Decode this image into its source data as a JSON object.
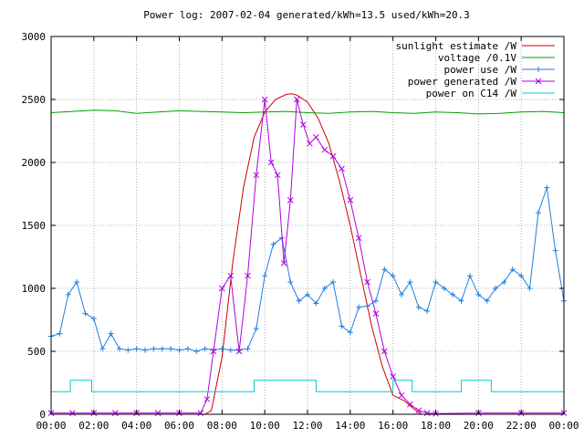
{
  "chart_data": {
    "type": "line",
    "title": "Power log: 2007-02-04 generated/kWh=13.5 used/kWh=20.3",
    "xlabel": "",
    "ylabel": "",
    "x_unit": "hours",
    "xlim": [
      0,
      24
    ],
    "ylim": [
      0,
      3000
    ],
    "xtick_values": [
      0,
      2,
      4,
      6,
      8,
      10,
      12,
      14,
      16,
      18,
      20,
      22,
      24
    ],
    "xtick_labels": [
      "00:00",
      "02:00",
      "04:00",
      "06:00",
      "08:00",
      "10:00",
      "12:00",
      "14:00",
      "16:00",
      "18:00",
      "20:00",
      "22:00",
      "00:00"
    ],
    "ytick_values": [
      0,
      500,
      1000,
      1500,
      2000,
      2500,
      3000
    ],
    "ytick_labels": [
      "0",
      "500",
      "1000",
      "1500",
      "2000",
      "2500",
      "3000"
    ],
    "grid": true,
    "legend_position": "top-right",
    "series": [
      {
        "name": "sunlight estimate /W",
        "color": "#cc0000",
        "marker": "none",
        "x": [
          0,
          7.2,
          7.5,
          8.0,
          8.5,
          9.0,
          9.5,
          10.0,
          10.5,
          11.0,
          11.25,
          11.5,
          12.0,
          12.5,
          13.0,
          13.5,
          14.0,
          14.5,
          15.0,
          15.5,
          16.0,
          16.5,
          17.0,
          17.3,
          24
        ],
        "y": [
          0,
          0,
          30,
          450,
          1200,
          1800,
          2200,
          2400,
          2500,
          2540,
          2545,
          2535,
          2480,
          2350,
          2150,
          1850,
          1500,
          1100,
          700,
          380,
          150,
          110,
          40,
          0,
          0
        ]
      },
      {
        "name": "voltage /0.1V",
        "color": "#00a000",
        "marker": "none",
        "x": [
          0,
          1,
          2,
          3,
          4,
          5,
          6,
          7,
          8,
          9,
          10,
          11,
          12,
          13,
          14,
          15,
          16,
          17,
          18,
          19,
          20,
          21,
          22,
          23,
          24
        ],
        "y": [
          2395,
          2405,
          2415,
          2410,
          2390,
          2400,
          2410,
          2405,
          2400,
          2395,
          2400,
          2405,
          2395,
          2390,
          2400,
          2405,
          2395,
          2390,
          2400,
          2395,
          2385,
          2390,
          2400,
          2405,
          2395
        ]
      },
      {
        "name": "power use /W",
        "color": "#1e7fe0",
        "marker": "plus",
        "x": [
          0,
          0.4,
          0.8,
          1.2,
          1.6,
          2.0,
          2.4,
          2.8,
          3.2,
          3.6,
          4.0,
          4.4,
          4.8,
          5.2,
          5.6,
          6.0,
          6.4,
          6.8,
          7.2,
          7.6,
          8.0,
          8.4,
          8.8,
          9.2,
          9.6,
          10.0,
          10.4,
          10.8,
          11.2,
          11.6,
          12.0,
          12.4,
          12.8,
          13.2,
          13.6,
          14.0,
          14.4,
          14.8,
          15.2,
          15.6,
          16.0,
          16.4,
          16.8,
          17.2,
          17.6,
          18.0,
          18.4,
          18.8,
          19.2,
          19.6,
          20.0,
          20.4,
          20.8,
          21.2,
          21.6,
          22.0,
          22.4,
          22.8,
          23.2,
          23.6,
          24.0
        ],
        "y": [
          620,
          640,
          950,
          1050,
          800,
          760,
          520,
          640,
          520,
          510,
          520,
          510,
          520,
          520,
          520,
          510,
          520,
          500,
          520,
          510,
          520,
          510,
          510,
          520,
          680,
          1100,
          1350,
          1400,
          1050,
          900,
          950,
          880,
          1000,
          1050,
          700,
          650,
          850,
          860,
          900,
          1150,
          1100,
          950,
          1050,
          850,
          820,
          1050,
          1000,
          950,
          900,
          1100,
          950,
          900,
          1000,
          1050,
          1150,
          1100,
          1000,
          1600,
          1800,
          1300,
          900
        ]
      },
      {
        "name": "power generated /W",
        "color": "#b000e0",
        "marker": "x",
        "x": [
          0,
          1,
          2,
          3,
          4,
          5,
          6,
          7,
          7.3,
          7.6,
          8.0,
          8.4,
          8.8,
          9.2,
          9.6,
          10.0,
          10.3,
          10.6,
          10.9,
          11.2,
          11.5,
          11.8,
          12.1,
          12.4,
          12.8,
          13.2,
          13.6,
          14.0,
          14.4,
          14.8,
          15.2,
          15.6,
          16.0,
          16.4,
          16.8,
          17.2,
          17.6,
          18.0,
          20,
          22,
          24
        ],
        "y": [
          10,
          10,
          10,
          10,
          10,
          10,
          10,
          10,
          120,
          500,
          1000,
          1100,
          500,
          1100,
          1900,
          2500,
          2000,
          1900,
          1200,
          1700,
          2500,
          2300,
          2150,
          2200,
          2100,
          2050,
          1950,
          1700,
          1400,
          1050,
          800,
          500,
          300,
          150,
          80,
          30,
          10,
          5,
          10,
          10,
          10
        ]
      },
      {
        "name": "power on C14 /W",
        "color": "#00cccc",
        "marker": "none",
        "x": [
          0,
          0.9,
          0.9,
          1.9,
          1.9,
          9.5,
          9.5,
          12.4,
          12.4,
          16.0,
          16.0,
          16.9,
          16.9,
          19.2,
          19.2,
          20.6,
          20.6,
          24
        ],
        "y": [
          180,
          180,
          270,
          270,
          180,
          180,
          270,
          270,
          180,
          180,
          270,
          270,
          180,
          180,
          270,
          270,
          180,
          180
        ]
      }
    ]
  }
}
